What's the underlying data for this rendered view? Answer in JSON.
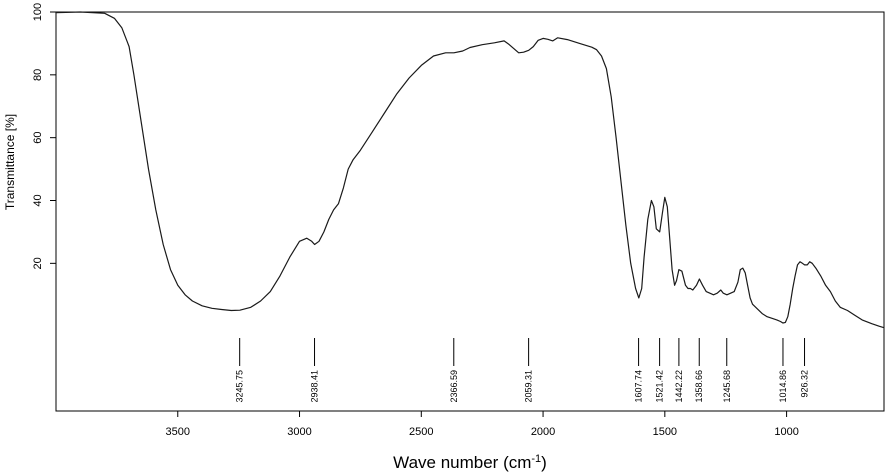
{
  "chart_data": {
    "type": "line",
    "title": "",
    "xlabel": "Wave number (cm",
    "xlabel_sup": "-1",
    "xlabel_end": ")",
    "ylabel": "Transmittance [%]",
    "xlim": [
      4000,
      600
    ],
    "ylim": [
      -27,
      100
    ],
    "x_reversed": true,
    "grid": false,
    "x_ticks": [
      {
        "value": 3500,
        "label": "3500"
      },
      {
        "value": 3000,
        "label": "3000"
      },
      {
        "value": 2500,
        "label": "2500"
      },
      {
        "value": 2000,
        "label": "2000"
      },
      {
        "value": 1500,
        "label": "1500"
      },
      {
        "value": 1000,
        "label": "1000"
      }
    ],
    "y_ticks": [
      {
        "value": 100,
        "label": "100"
      },
      {
        "value": 80,
        "label": "80"
      },
      {
        "value": 60,
        "label": "60"
      },
      {
        "value": 40,
        "label": "40"
      },
      {
        "value": 20,
        "label": "20"
      }
    ],
    "peaks": [
      {
        "value": 3245.75,
        "label": "3245.75"
      },
      {
        "value": 2938.41,
        "label": "2938.41"
      },
      {
        "value": 2366.59,
        "label": "2366.59"
      },
      {
        "value": 2059.31,
        "label": "2059.31"
      },
      {
        "value": 1607.74,
        "label": "1607.74"
      },
      {
        "value": 1521.42,
        "label": "1521.42"
      },
      {
        "value": 1442.22,
        "label": "1442.22"
      },
      {
        "value": 1358.66,
        "label": "1358.66"
      },
      {
        "value": 1245.68,
        "label": "1245.68"
      },
      {
        "value": 1014.86,
        "label": "1014.86"
      },
      {
        "value": 926.32,
        "label": "926.32"
      }
    ],
    "series": [
      {
        "x": [
          4000,
          3900,
          3800,
          3760,
          3730,
          3700,
          3680,
          3650,
          3620,
          3590,
          3560,
          3530,
          3500,
          3470,
          3440,
          3400,
          3360,
          3320,
          3280,
          3245,
          3200,
          3160,
          3120,
          3080,
          3040,
          3000,
          2970,
          2950,
          2938,
          2920,
          2900,
          2880,
          2860,
          2840,
          2820,
          2800,
          2780,
          2750,
          2700,
          2650,
          2600,
          2550,
          2500,
          2450,
          2400,
          2366,
          2330,
          2300,
          2250,
          2200,
          2160,
          2140,
          2100,
          2080,
          2059,
          2040,
          2020,
          2000,
          1980,
          1960,
          1940,
          1900,
          1850,
          1800,
          1780,
          1760,
          1740,
          1720,
          1700,
          1680,
          1660,
          1640,
          1620,
          1607,
          1595,
          1585,
          1570,
          1555,
          1545,
          1535,
          1521,
          1510,
          1500,
          1490,
          1480,
          1470,
          1460,
          1452,
          1442,
          1430,
          1415,
          1405,
          1395,
          1385,
          1370,
          1358,
          1345,
          1330,
          1315,
          1300,
          1285,
          1270,
          1260,
          1245,
          1230,
          1215,
          1200,
          1190,
          1180,
          1170,
          1160,
          1150,
          1140,
          1120,
          1100,
          1080,
          1060,
          1040,
          1025,
          1015,
          1005,
          995,
          985,
          975,
          965,
          955,
          945,
          935,
          926,
          915,
          905,
          895,
          880,
          860,
          840,
          820,
          800,
          780,
          750,
          720,
          690,
          650,
          620,
          600
        ],
        "y": [
          99.8,
          100,
          99.6,
          98,
          95,
          89,
          80,
          65,
          50,
          37,
          26,
          18,
          13,
          10,
          8,
          6.5,
          5.7,
          5.3,
          5,
          5.1,
          6,
          8,
          11,
          16,
          22,
          27,
          28,
          27,
          26,
          27,
          30,
          34,
          37,
          39,
          44,
          50,
          53,
          56,
          62,
          68,
          74,
          79,
          83,
          86,
          87,
          87,
          87.6,
          88.7,
          89.6,
          90.2,
          90.8,
          89.7,
          87,
          87.2,
          87.8,
          89,
          91,
          91.6,
          91.3,
          90.8,
          91.8,
          91.2,
          90,
          88.8,
          88,
          86,
          82,
          73,
          60,
          46,
          32,
          20,
          12,
          9,
          12,
          22,
          34,
          40,
          38,
          31,
          30,
          36,
          41,
          38,
          28,
          18,
          13,
          14.5,
          18,
          17.5,
          13,
          12,
          12,
          11.5,
          13,
          15,
          13,
          11,
          10.5,
          10,
          10.5,
          11.5,
          10.5,
          10,
          10.5,
          11,
          14,
          18,
          18.5,
          17,
          13,
          9,
          7,
          5.5,
          4,
          3,
          2.5,
          2,
          1.5,
          1,
          1.2,
          3,
          7,
          12,
          16,
          19.5,
          20.5,
          20,
          19.5,
          19.5,
          20.5,
          20,
          18.5,
          16,
          13,
          11,
          8,
          6,
          5,
          3.5,
          2,
          0.8,
          0,
          -0.5
        ]
      }
    ]
  }
}
